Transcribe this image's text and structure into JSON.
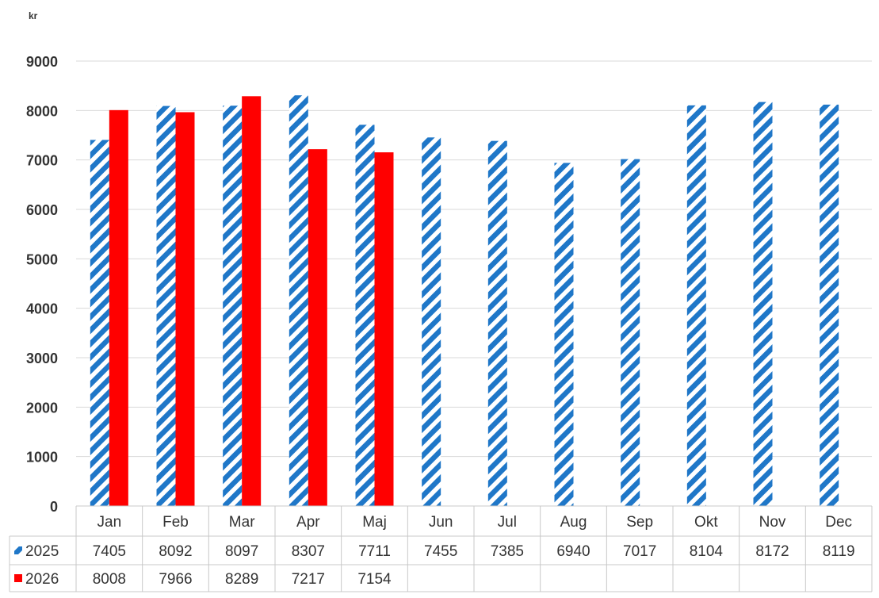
{
  "chart_data": {
    "type": "bar",
    "unit_label": "kr",
    "categories": [
      "Jan",
      "Feb",
      "Mar",
      "Apr",
      "Maj",
      "Jun",
      "Jul",
      "Aug",
      "Sep",
      "Okt",
      "Nov",
      "Dec"
    ],
    "series": [
      {
        "name": "2025",
        "values": [
          7405,
          8092,
          8097,
          8307,
          7711,
          7455,
          7385,
          6940,
          7017,
          8104,
          8172,
          8119
        ],
        "color": "#1f77c8",
        "fill": "diagonal-stripes"
      },
      {
        "name": "2026",
        "values": [
          8008,
          7966,
          8289,
          7217,
          7154,
          null,
          null,
          null,
          null,
          null,
          null,
          null
        ],
        "color": "#ff0000",
        "fill": "solid"
      }
    ],
    "ylim": [
      0,
      9000
    ],
    "yticks": [
      "0",
      "1000",
      "2000",
      "3000",
      "4000",
      "5000",
      "6000",
      "7000",
      "8000",
      "9000"
    ],
    "grid": true,
    "legend": "data-table"
  }
}
